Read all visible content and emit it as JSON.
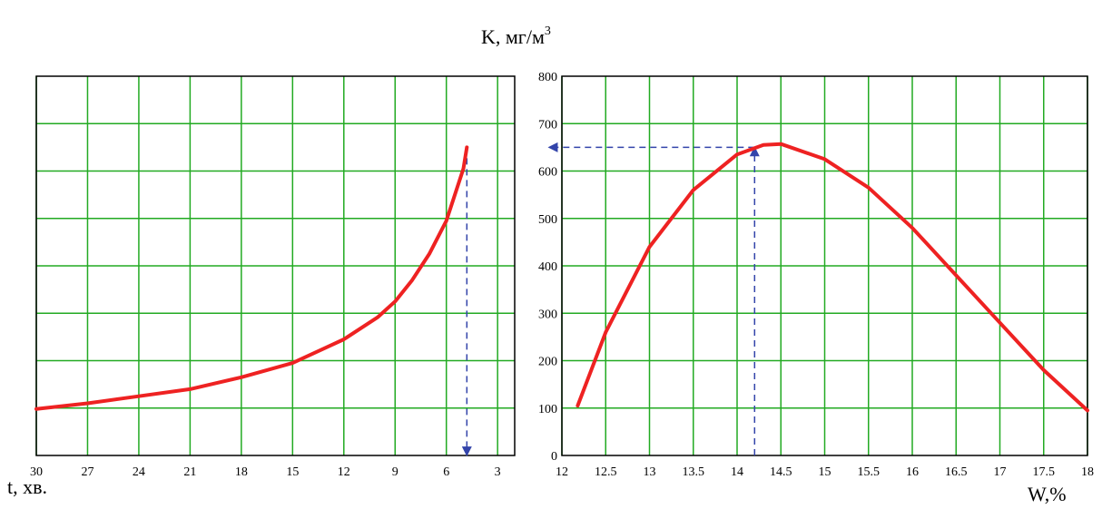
{
  "header": {
    "title": "K, мг/м",
    "title_sup": "3"
  },
  "colors": {
    "grid": "#22aa22",
    "curve": "#ee2222",
    "guide": "#3344aa",
    "frame": "#000000"
  },
  "chart_data": [
    {
      "type": "line",
      "id": "left",
      "xlabel": "t, хв.",
      "x_ticks": [
        30,
        27,
        24,
        21,
        18,
        15,
        12,
        9,
        6,
        3
      ],
      "x_reversed": true,
      "xlim": [
        30,
        2
      ],
      "ylim": [
        0,
        800
      ],
      "grid": true,
      "series": [
        {
          "x": [
            30,
            27,
            24,
            21,
            18,
            15,
            12,
            10,
            9,
            8,
            7,
            6,
            5.5,
            5,
            4.8
          ],
          "y": [
            98,
            110,
            125,
            140,
            165,
            195,
            245,
            292,
            325,
            370,
            425,
            495,
            550,
            605,
            650
          ]
        }
      ],
      "guides": [
        {
          "from": [
            4.8,
            650
          ],
          "to": [
            4.8,
            0
          ],
          "arrow": "end"
        }
      ]
    },
    {
      "type": "line",
      "id": "right",
      "xlabel": "W,%",
      "x_ticks": [
        12,
        12.5,
        13,
        13.5,
        14,
        14.5,
        15,
        15.5,
        16,
        16.5,
        17,
        17.5,
        18
      ],
      "y_ticks": [
        0,
        100,
        200,
        300,
        400,
        500,
        600,
        700,
        800
      ],
      "xlim": [
        12,
        18
      ],
      "ylim": [
        0,
        800
      ],
      "grid": true,
      "series": [
        {
          "x": [
            12.18,
            12.5,
            13,
            13.5,
            14,
            14.3,
            14.5,
            15,
            15.5,
            16,
            16.5,
            17,
            17.5,
            18
          ],
          "y": [
            105,
            260,
            440,
            560,
            635,
            655,
            657,
            625,
            565,
            480,
            380,
            280,
            180,
            95
          ]
        }
      ],
      "guides": [
        {
          "from": [
            14.2,
            0
          ],
          "to": [
            14.2,
            650
          ],
          "arrow": "end"
        },
        {
          "from": [
            14.2,
            650
          ],
          "to": [
            11.85,
            650
          ],
          "arrow": "end"
        }
      ]
    }
  ]
}
